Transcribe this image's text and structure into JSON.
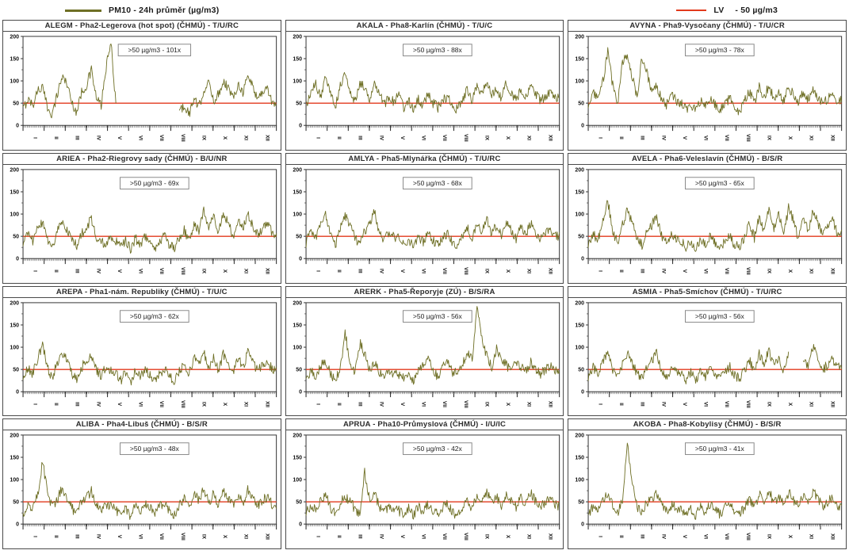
{
  "legend": {
    "pm10_label": "PM10 - 24h průměr (µg/m3)",
    "pm10_color": "#6e6f25",
    "lv_name": "LV",
    "lv_value": "- 50 µg/m3",
    "lv_color": "#e23a1c"
  },
  "axis": {
    "y_ticks": [
      0,
      50,
      100,
      150,
      200
    ],
    "y_max": 200,
    "y_unit": "µg/m3",
    "x_months": [
      "I",
      "II",
      "III",
      "IV",
      "V",
      "VI",
      "VII",
      "VIII",
      "IX",
      "X",
      "XI",
      "XII"
    ]
  },
  "chart_data": [
    {
      "type": "line",
      "code": "ALEGM",
      "title": "ALEGM - Pha2-Legerova (hot spot) (ČHMÚ) - T/U/RC",
      "exceedance_label": ">50 µg/m3 - 101x",
      "exceedances": 101,
      "lv": 50,
      "ylim": [
        0,
        200
      ],
      "x_unit": "months I–XII (daily series)",
      "values_weekly_estimate": [
        35,
        60,
        45,
        80,
        85,
        40,
        25,
        70,
        110,
        95,
        50,
        30,
        75,
        90,
        125,
        60,
        45,
        130,
        185,
        50,
        null,
        null,
        null,
        null,
        null,
        null,
        null,
        null,
        null,
        null,
        null,
        null,
        30,
        45,
        25,
        60,
        40,
        80,
        95,
        55,
        70,
        100,
        85,
        60,
        95,
        75,
        110,
        90,
        60,
        75,
        85,
        50
      ]
    },
    {
      "type": "line",
      "code": "AKALA",
      "title": "AKALA - Pha8-Karlín (ČHMÚ) - T/U/C",
      "exceedance_label": ">50 µg/m3 - 88x",
      "exceedances": 88,
      "lv": 50,
      "ylim": [
        0,
        200
      ],
      "x_unit": "months I–XII (daily series)",
      "values_weekly_estimate": [
        45,
        70,
        95,
        60,
        110,
        80,
        40,
        90,
        120,
        70,
        55,
        95,
        85,
        60,
        100,
        75,
        45,
        65,
        50,
        70,
        40,
        55,
        35,
        60,
        45,
        70,
        50,
        40,
        55,
        65,
        45,
        35,
        60,
        80,
        55,
        90,
        70,
        100,
        65,
        85,
        60,
        95,
        75,
        55,
        80,
        60,
        90,
        70,
        55,
        65,
        75,
        60
      ]
    },
    {
      "type": "line",
      "code": "AVYNA",
      "title": "AVYNA - Pha9-Vysočany (ČHMÚ) - T/U/CR",
      "exceedance_label": ">50 µg/m3 - 78x",
      "exceedances": 78,
      "lv": 50,
      "ylim": [
        0,
        200
      ],
      "x_unit": "months I–XII (daily series)",
      "values_weekly_estimate": [
        40,
        75,
        55,
        100,
        165,
        90,
        50,
        140,
        160,
        110,
        60,
        155,
        120,
        70,
        90,
        60,
        45,
        70,
        55,
        50,
        35,
        50,
        30,
        55,
        40,
        60,
        45,
        35,
        50,
        60,
        40,
        30,
        55,
        75,
        50,
        85,
        65,
        90,
        60,
        80,
        55,
        85,
        70,
        50,
        75,
        60,
        85,
        65,
        50,
        60,
        70,
        55
      ]
    },
    {
      "type": "line",
      "code": "ARIEA",
      "title": "ARIEA - Pha2-Riegrovy sady (ČHMÚ) - B/U/NR",
      "exceedance_label": ">50 µg/m3 - 69x",
      "exceedances": 69,
      "lv": 50,
      "ylim": [
        0,
        200
      ],
      "x_unit": "months I–XII (daily series)",
      "values_weekly_estimate": [
        30,
        55,
        40,
        70,
        80,
        45,
        25,
        60,
        85,
        65,
        40,
        30,
        55,
        70,
        90,
        50,
        35,
        35,
        45,
        40,
        25,
        40,
        20,
        45,
        30,
        50,
        35,
        25,
        40,
        50,
        30,
        25,
        45,
        65,
        40,
        80,
        60,
        110,
        70,
        95,
        55,
        105,
        80,
        50,
        90,
        65,
        100,
        75,
        55,
        65,
        80,
        55
      ]
    },
    {
      "type": "line",
      "code": "AMLYA",
      "title": "AMLYA - Pha5-Mlynářka (ČHMÚ) - T/U/RC",
      "exceedance_label": ">50 µg/m3 - 68x",
      "exceedances": 68,
      "lv": 50,
      "ylim": [
        0,
        200
      ],
      "x_unit": "months I–XII (daily series)",
      "values_weekly_estimate": [
        35,
        60,
        45,
        80,
        100,
        55,
        30,
        70,
        95,
        75,
        45,
        35,
        60,
        80,
        105,
        55,
        40,
        60,
        50,
        45,
        30,
        45,
        25,
        50,
        35,
        55,
        40,
        30,
        45,
        55,
        35,
        30,
        50,
        70,
        45,
        80,
        60,
        90,
        55,
        75,
        50,
        85,
        65,
        45,
        70,
        55,
        80,
        60,
        45,
        55,
        65,
        50
      ]
    },
    {
      "type": "line",
      "code": "AVELA",
      "title": "AVELA - Pha6-Veleslavín (ČHMÚ) - B/S/R",
      "exceedance_label": ">50 µg/m3 - 65x",
      "exceedances": 65,
      "lv": 50,
      "ylim": [
        0,
        200
      ],
      "x_unit": "months I–XII (daily series)",
      "values_weekly_estimate": [
        30,
        55,
        40,
        90,
        130,
        60,
        35,
        75,
        110,
        80,
        45,
        30,
        60,
        75,
        95,
        50,
        35,
        55,
        45,
        40,
        25,
        40,
        20,
        45,
        30,
        50,
        35,
        25,
        40,
        50,
        30,
        25,
        50,
        80,
        45,
        95,
        60,
        110,
        65,
        100,
        50,
        115,
        85,
        45,
        100,
        60,
        110,
        80,
        50,
        70,
        90,
        55
      ]
    },
    {
      "type": "line",
      "code": "AREPA",
      "title": "AREPA - Pha1-nám. Republiky (ČHMÚ) - T/U/C",
      "exceedance_label": ">50 µg/m3 - 62x",
      "exceedances": 62,
      "lv": 50,
      "ylim": [
        0,
        200
      ],
      "x_unit": "months I–XII (daily series)",
      "values_weekly_estimate": [
        30,
        55,
        40,
        75,
        105,
        55,
        30,
        65,
        90,
        70,
        40,
        30,
        55,
        70,
        85,
        50,
        35,
        55,
        45,
        40,
        25,
        45,
        22,
        48,
        32,
        52,
        38,
        28,
        42,
        52,
        32,
        26,
        45,
        65,
        40,
        78,
        58,
        88,
        55,
        75,
        48,
        85,
        65,
        45,
        75,
        55,
        88,
        65,
        48,
        58,
        70,
        50
      ]
    },
    {
      "type": "line",
      "code": "ARERK",
      "title": "ARERK - Pha5-Řeporyje (ZÚ) - B/S/RA",
      "exceedance_label": ">50 µg/m3 - 56x",
      "exceedances": 56,
      "lv": 50,
      "ylim": [
        0,
        200
      ],
      "x_unit": "months I–XII (daily series)",
      "values_weekly_estimate": [
        25,
        45,
        35,
        60,
        70,
        40,
        25,
        55,
        130,
        70,
        40,
        110,
        85,
        50,
        65,
        45,
        30,
        50,
        40,
        35,
        30,
        45,
        25,
        50,
        60,
        75,
        45,
        35,
        55,
        70,
        45,
        40,
        60,
        90,
        70,
        185,
        120,
        80,
        55,
        95,
        70,
        60,
        45,
        70,
        55,
        45,
        65,
        50,
        40,
        50,
        60,
        45
      ]
    },
    {
      "type": "line",
      "code": "ASMIA",
      "title": "ASMIA - Pha5-Smíchov (ČHMÚ) - T/U/RC",
      "exceedance_label": ">50 µg/m3 - 56x",
      "exceedances": 56,
      "lv": 50,
      "ylim": [
        0,
        200
      ],
      "x_unit": "months I–XII (daily series)",
      "values_weekly_estimate": [
        30,
        55,
        40,
        70,
        90,
        50,
        30,
        60,
        85,
        65,
        40,
        30,
        55,
        70,
        85,
        50,
        35,
        50,
        45,
        38,
        28,
        45,
        25,
        50,
        35,
        55,
        40,
        30,
        45,
        55,
        35,
        30,
        50,
        70,
        45,
        85,
        60,
        95,
        55,
        80,
        45,
        90,
        null,
        null,
        70,
        55,
        100,
        75,
        50,
        60,
        75,
        55
      ]
    },
    {
      "type": "line",
      "code": "ALIBA",
      "title": "ALIBA - Pha4-Libuš (ČHMÚ) - B/S/R",
      "exceedance_label": ">50 µg/m3 - 48x",
      "exceedances": 48,
      "lv": 50,
      "ylim": [
        0,
        200
      ],
      "x_unit": "months I–XII (daily series)",
      "values_weekly_estimate": [
        25,
        45,
        35,
        65,
        140,
        75,
        35,
        55,
        80,
        60,
        35,
        25,
        50,
        60,
        75,
        45,
        30,
        45,
        40,
        32,
        22,
        38,
        18,
        42,
        28,
        48,
        35,
        25,
        40,
        48,
        28,
        22,
        40,
        60,
        38,
        70,
        52,
        80,
        48,
        68,
        42,
        75,
        58,
        40,
        65,
        48,
        78,
        58,
        42,
        52,
        62,
        45
      ]
    },
    {
      "type": "line",
      "code": "APRUA",
      "title": "APRUA - Pha10-Průmyslová (ČHMÚ) - I/U/IC",
      "exceedance_label": ">50 µg/m3 - 42x",
      "exceedances": 42,
      "lv": 50,
      "ylim": [
        0,
        200
      ],
      "x_unit": "months I–XII (daily series)",
      "values_weekly_estimate": [
        25,
        40,
        30,
        55,
        65,
        38,
        22,
        48,
        60,
        55,
        32,
        25,
        115,
        55,
        68,
        40,
        28,
        42,
        35,
        30,
        20,
        35,
        18,
        40,
        26,
        45,
        32,
        22,
        38,
        45,
        26,
        20,
        38,
        55,
        35,
        65,
        48,
        75,
        45,
        62,
        40,
        70,
        52,
        38,
        60,
        45,
        70,
        52,
        38,
        48,
        58,
        42
      ]
    },
    {
      "type": "line",
      "code": "AKOBA",
      "title": "AKOBA - Pha8-Kobylisy (ČHMÚ) - B/S/R",
      "exceedance_label": ">50 µg/m3 - 41x",
      "exceedances": 41,
      "lv": 50,
      "ylim": [
        0,
        200
      ],
      "x_unit": "months I–XII (daily series)",
      "values_weekly_estimate": [
        22,
        40,
        30,
        55,
        70,
        45,
        25,
        50,
        178,
        90,
        40,
        28,
        48,
        58,
        72,
        42,
        28,
        42,
        38,
        30,
        20,
        35,
        18,
        40,
        26,
        45,
        30,
        22,
        36,
        44,
        26,
        20,
        38,
        55,
        35,
        68,
        48,
        78,
        45,
        65,
        40,
        72,
        55,
        38,
        62,
        45,
        75,
        55,
        40,
        50,
        60,
        42
      ]
    }
  ]
}
